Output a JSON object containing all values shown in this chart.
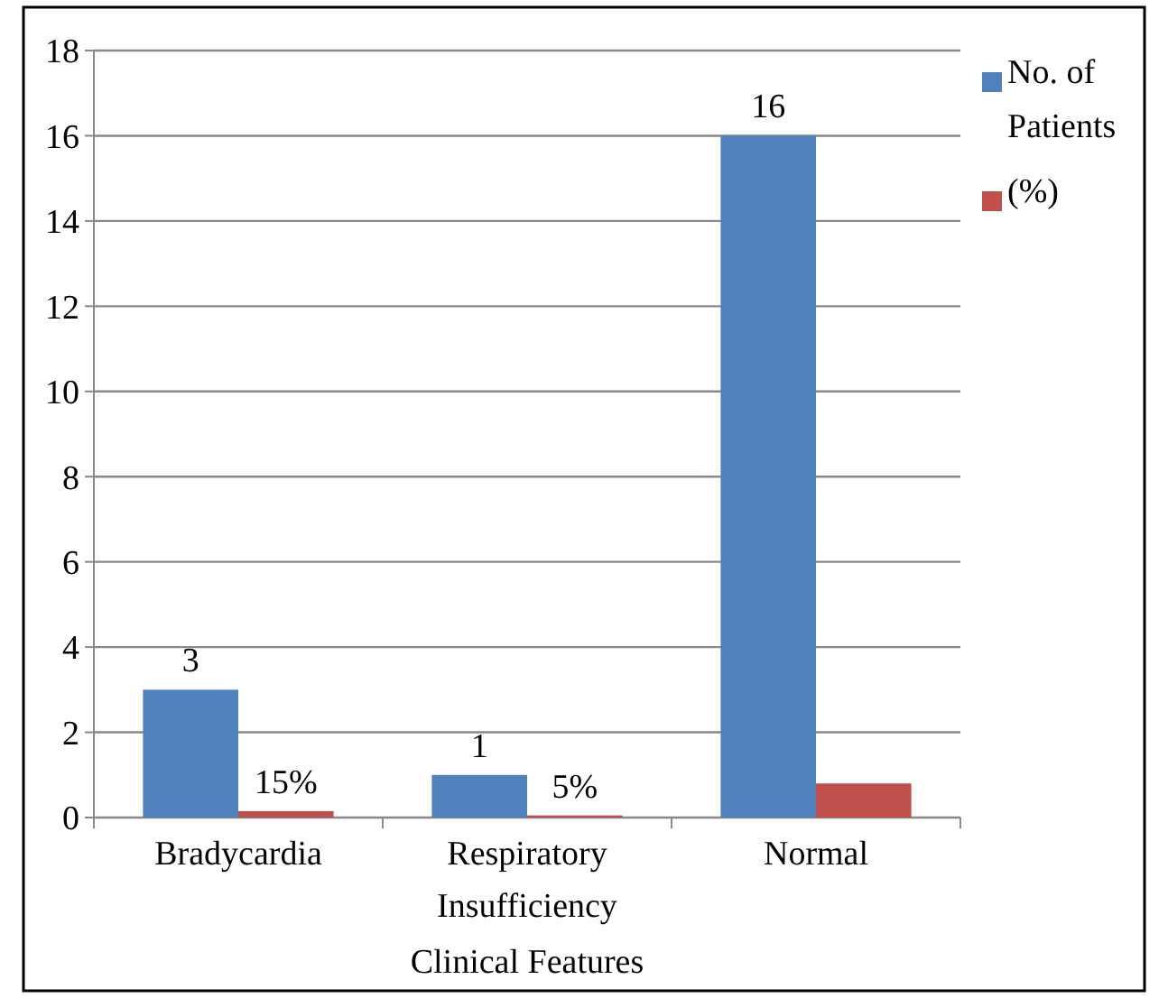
{
  "chart_data": {
    "type": "bar",
    "xlabel": "Clinical Features",
    "categories": [
      "Bradycardia",
      "Respiratory Insufficiency",
      "Normal"
    ],
    "series": [
      {
        "name": "No. of Patients",
        "color": "#4f81bd",
        "values": [
          3,
          1,
          16
        ],
        "value_labels": [
          "3",
          "1",
          "16"
        ]
      },
      {
        "name": "(%)",
        "color": "#c0504d",
        "values": [
          0.15,
          0.05,
          0.8
        ],
        "value_labels": [
          "15%",
          "5%",
          null
        ]
      }
    ],
    "ylim": [
      0,
      18
    ],
    "yticks": [
      0,
      2,
      4,
      6,
      8,
      10,
      12,
      14,
      16,
      18
    ],
    "grid": "y",
    "legend": "top right"
  }
}
